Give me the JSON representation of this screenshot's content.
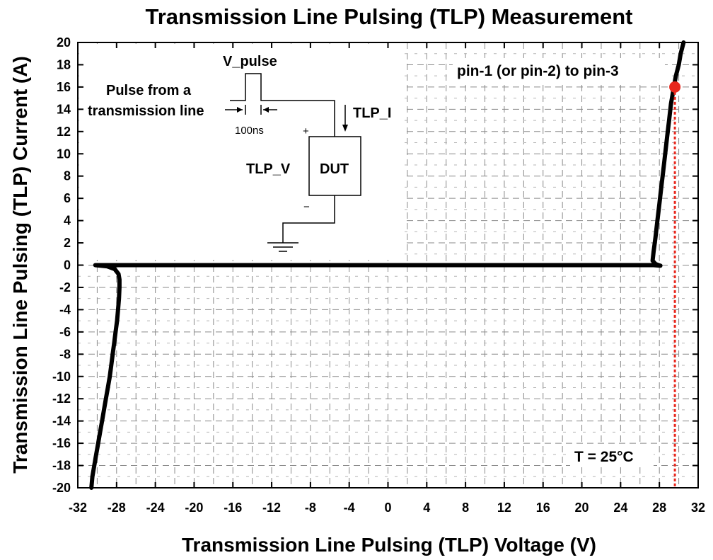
{
  "chart_data": {
    "type": "line",
    "title": "Transmission Line Pulsing (TLP) Measurement",
    "xlabel": "Transmission Line Pulsing (TLP) Voltage (V)",
    "ylabel": "Transmission Line Pulsing (TLP) Current (A)",
    "xlim": [
      -32,
      32
    ],
    "ylim": [
      -20,
      20
    ],
    "x_ticks": [
      -32,
      -28,
      -24,
      -20,
      -16,
      -12,
      -8,
      -4,
      0,
      4,
      8,
      12,
      16,
      20,
      24,
      28,
      32
    ],
    "y_ticks": [
      20,
      18,
      16,
      14,
      12,
      10,
      8,
      6,
      4,
      2,
      0,
      -2,
      -4,
      -6,
      -8,
      -10,
      -12,
      -14,
      -16,
      -18,
      -20
    ],
    "grid": "dashed",
    "series": [
      {
        "color": "#000000",
        "points": [
          [
            -30.6,
            -20
          ],
          [
            -30.5,
            -19
          ],
          [
            -30.3,
            -18
          ],
          [
            -30.1,
            -17
          ],
          [
            -29.9,
            -16
          ],
          [
            -29.7,
            -15
          ],
          [
            -29.5,
            -14
          ],
          [
            -29.3,
            -13
          ],
          [
            -29.1,
            -12
          ],
          [
            -28.9,
            -11
          ],
          [
            -28.7,
            -10
          ],
          [
            -28.55,
            -9
          ],
          [
            -28.4,
            -8
          ],
          [
            -28.25,
            -7
          ],
          [
            -28.1,
            -6
          ],
          [
            -27.95,
            -5
          ],
          [
            -27.85,
            -4
          ],
          [
            -27.75,
            -3
          ],
          [
            -27.7,
            -2
          ],
          [
            -27.7,
            -1.3
          ],
          [
            -27.8,
            -0.8
          ],
          [
            -28.2,
            -0.35
          ],
          [
            -29,
            -0.1
          ],
          [
            -30.2,
            0
          ],
          [
            -29,
            0
          ],
          [
            -20,
            0
          ],
          [
            -10,
            0
          ],
          [
            0,
            0
          ],
          [
            10,
            0
          ],
          [
            20,
            0
          ],
          [
            27.4,
            0
          ],
          [
            28.1,
            -0.05
          ],
          [
            27.6,
            0.1
          ],
          [
            27.3,
            0.4
          ],
          [
            27.4,
            1.2
          ],
          [
            27.6,
            2.5
          ],
          [
            27.8,
            4
          ],
          [
            28.0,
            5.5
          ],
          [
            28.2,
            7
          ],
          [
            28.4,
            8.5
          ],
          [
            28.6,
            10
          ],
          [
            28.8,
            11.5
          ],
          [
            29.0,
            13
          ],
          [
            29.2,
            14.5
          ],
          [
            29.5,
            16
          ],
          [
            29.7,
            17
          ],
          [
            30.0,
            18
          ],
          [
            30.2,
            19
          ],
          [
            30.5,
            20
          ]
        ]
      }
    ],
    "marker": {
      "x": 29.6,
      "y": 16,
      "color": "#e8261c"
    },
    "reference_line": {
      "x": 29.6,
      "from_y": 16,
      "to_y": -20,
      "color": "#e8261c",
      "style": "dotted"
    },
    "annotations": {
      "pin_label": "pin-1 (or pin-2) to pin-3",
      "temperature": "T = 25°C"
    }
  },
  "inset": {
    "v_pulse": "V_pulse",
    "pulse_line1": "Pulse from a",
    "pulse_line2": "transmission line",
    "pulse_width": "100ns",
    "tlp_i": "TLP_I",
    "tlp_v": "TLP_V",
    "plus": "+",
    "minus": "−",
    "dut": "DUT"
  }
}
